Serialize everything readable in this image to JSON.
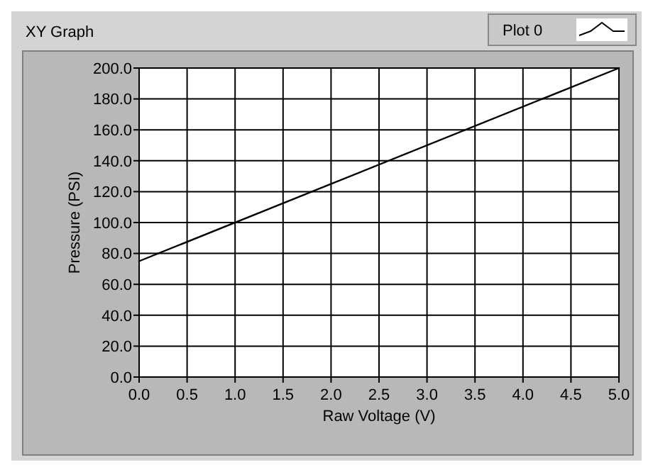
{
  "chart_data": {
    "type": "line",
    "title": "XY Graph",
    "xlabel": "Raw Voltage (V)",
    "ylabel": "Pressure (PSI)",
    "x": [
      0,
      5
    ],
    "series": [
      {
        "name": "Plot 0",
        "color": "#000000",
        "values": [
          75,
          200
        ]
      }
    ],
    "xlim": [
      0,
      5
    ],
    "ylim": [
      0,
      200
    ],
    "xticks": [
      {
        "value": 0,
        "label": "0.0"
      },
      {
        "value": 0.5,
        "label": "0.5"
      },
      {
        "value": 1,
        "label": "1.0"
      },
      {
        "value": 1.5,
        "label": "1.5"
      },
      {
        "value": 2,
        "label": "2.0"
      },
      {
        "value": 2.5,
        "label": "2.5"
      },
      {
        "value": 3,
        "label": "3.0"
      },
      {
        "value": 3.5,
        "label": "3.5"
      },
      {
        "value": 4,
        "label": "4.0"
      },
      {
        "value": 4.5,
        "label": "4.5"
      },
      {
        "value": 5,
        "label": "5.0"
      }
    ],
    "yticks": [
      {
        "value": 0,
        "label": "0.0"
      },
      {
        "value": 20,
        "label": "20.0"
      },
      {
        "value": 40,
        "label": "40.0"
      },
      {
        "value": 60,
        "label": "60.0"
      },
      {
        "value": 80,
        "label": "80.0"
      },
      {
        "value": 100,
        "label": "100.0"
      },
      {
        "value": 120,
        "label": "120.0"
      },
      {
        "value": 140,
        "label": "140.0"
      },
      {
        "value": 160,
        "label": "160.0"
      },
      {
        "value": 180,
        "label": "180.0"
      },
      {
        "value": 200,
        "label": "200.0"
      }
    ],
    "grid": true,
    "legend": "top right",
    "line_style": "solid"
  }
}
